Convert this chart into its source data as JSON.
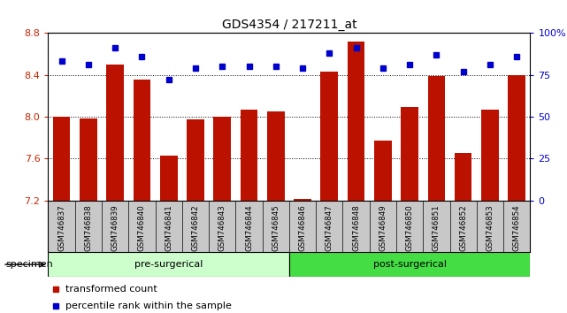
{
  "title": "GDS4354 / 217211_at",
  "samples": [
    "GSM746837",
    "GSM746838",
    "GSM746839",
    "GSM746840",
    "GSM746841",
    "GSM746842",
    "GSM746843",
    "GSM746844",
    "GSM746845",
    "GSM746846",
    "GSM746847",
    "GSM746848",
    "GSM746849",
    "GSM746850",
    "GSM746851",
    "GSM746852",
    "GSM746853",
    "GSM746854"
  ],
  "bar_values": [
    8.0,
    7.98,
    8.5,
    8.35,
    7.63,
    7.97,
    8.0,
    8.07,
    8.05,
    7.21,
    8.43,
    8.72,
    7.77,
    8.09,
    8.39,
    7.65,
    8.07,
    8.4
  ],
  "percentile_values": [
    83,
    81,
    91,
    86,
    72,
    79,
    80,
    80,
    80,
    79,
    88,
    91,
    79,
    81,
    87,
    77,
    81,
    86
  ],
  "ylim_left": [
    7.2,
    8.8
  ],
  "ylim_right": [
    0,
    100
  ],
  "yticks_left": [
    7.2,
    7.6,
    8.0,
    8.4,
    8.8
  ],
  "yticks_right": [
    0,
    25,
    50,
    75,
    100
  ],
  "ytick_labels_right": [
    "0",
    "25",
    "50",
    "75",
    "100%"
  ],
  "bar_color": "#BB1100",
  "dot_color": "#0000CC",
  "pre_surgical_count": 9,
  "post_surgical_count": 9,
  "pre_label": "pre-surgerical",
  "post_label": "post-surgerical",
  "pre_color": "#CCFFCC",
  "post_color": "#44DD44",
  "background_plot": "#FFFFFF",
  "background_tick": "#C8C8C8",
  "specimen_label": "specimen"
}
